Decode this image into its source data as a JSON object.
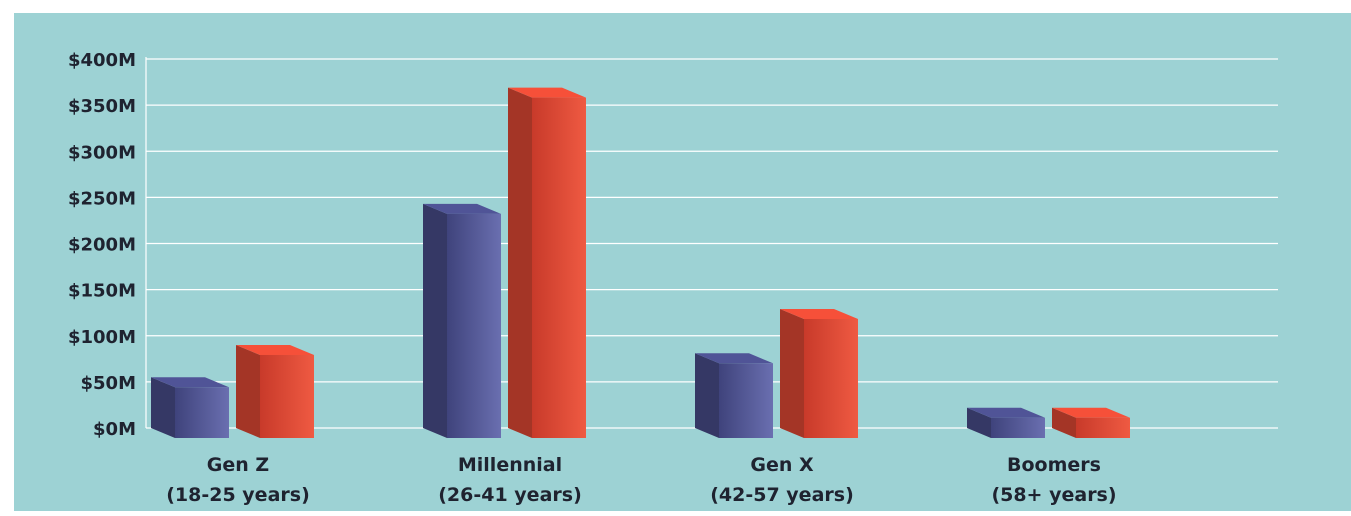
{
  "chart_data": {
    "type": "bar",
    "title": "",
    "xlabel": "",
    "ylabel": "",
    "ylim": [
      0,
      400
    ],
    "y_ticks": [
      "$0M",
      "$50M",
      "$100M",
      "$150M",
      "$200M",
      "$250M",
      "$300M",
      "$350M",
      "$400M"
    ],
    "y_tick_values": [
      0,
      50,
      100,
      150,
      200,
      250,
      300,
      350,
      400
    ],
    "categories": [
      {
        "name": "Gen Z",
        "range": "(18-25 years)"
      },
      {
        "name": "Millennial",
        "range": "(26-41 years)"
      },
      {
        "name": "Gen X",
        "range": "(42-57 years)"
      },
      {
        "name": "Boomers",
        "range": "(58+ years)"
      }
    ],
    "series": [
      {
        "color": "#4a4e8c",
        "values": [
          55,
          243,
          81,
          22
        ]
      },
      {
        "color": "#e44a35",
        "values": [
          90,
          369,
          129,
          22
        ]
      }
    ],
    "grid": true,
    "legend": "none",
    "background_color": "#9dd2d4"
  }
}
